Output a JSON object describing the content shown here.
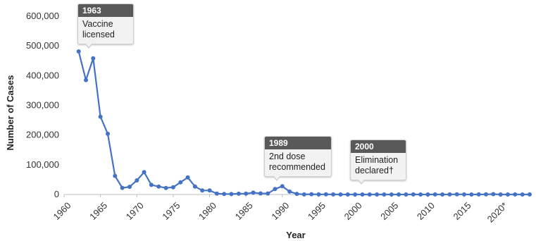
{
  "chart_data": {
    "type": "line",
    "title": "",
    "xlabel": "Year",
    "ylabel": "Number of Cases",
    "xlim": [
      1960,
      2024
    ],
    "ylim": [
      0,
      600000
    ],
    "grid": false,
    "line_color": "#4472c4",
    "y_ticks": [
      {
        "value": 0,
        "label": "0"
      },
      {
        "value": 100000,
        "label": "100,000"
      },
      {
        "value": 200000,
        "label": "200,000"
      },
      {
        "value": 300000,
        "label": "300,000"
      },
      {
        "value": 400000,
        "label": "400,000"
      },
      {
        "value": 500000,
        "label": "500,000"
      },
      {
        "value": 600000,
        "label": "600,000"
      }
    ],
    "x_ticks": [
      {
        "value": 1960,
        "label": "1960"
      },
      {
        "value": 1965,
        "label": "1965"
      },
      {
        "value": 1970,
        "label": "1970"
      },
      {
        "value": 1975,
        "label": "1975"
      },
      {
        "value": 1980,
        "label": "1980"
      },
      {
        "value": 1985,
        "label": "1985"
      },
      {
        "value": 1990,
        "label": "1990"
      },
      {
        "value": 1995,
        "label": "1995"
      },
      {
        "value": 2000,
        "label": "2000"
      },
      {
        "value": 2005,
        "label": "2005"
      },
      {
        "value": 2010,
        "label": "2010"
      },
      {
        "value": 2015,
        "label": "2015"
      },
      {
        "value": 2020,
        "label": "2020*"
      }
    ],
    "x": [
      1962,
      1963,
      1964,
      1965,
      1966,
      1967,
      1968,
      1969,
      1970,
      1971,
      1972,
      1973,
      1974,
      1975,
      1976,
      1977,
      1978,
      1979,
      1980,
      1981,
      1982,
      1983,
      1984,
      1985,
      1986,
      1987,
      1988,
      1989,
      1990,
      1991,
      1992,
      1993,
      1994,
      1995,
      1996,
      1997,
      1998,
      1999,
      2000,
      2001,
      2002,
      2003,
      2004,
      2005,
      2006,
      2007,
      2008,
      2009,
      2010,
      2011,
      2012,
      2013,
      2014,
      2015,
      2016,
      2017,
      2018,
      2019,
      2020,
      2021,
      2022,
      2023,
      2024
    ],
    "series": [
      {
        "values": [
          481530,
          385156,
          458083,
          261904,
          204136,
          62705,
          22231,
          25826,
          47351,
          75290,
          32275,
          26690,
          22094,
          24374,
          41126,
          57345,
          26871,
          13597,
          13506,
          3124,
          1714,
          1497,
          2587,
          2822,
          6282,
          3655,
          3396,
          18193,
          27786,
          9643,
          2237,
          312,
          963,
          309,
          508,
          138,
          100,
          100,
          86,
          116,
          44,
          56,
          37,
          66,
          55,
          43,
          140,
          71,
          63,
          220,
          55,
          187,
          667,
          188,
          86,
          120,
          375,
          1274,
          13,
          49,
          121,
          59,
          285
        ]
      }
    ],
    "annotations": [
      {
        "year_label": "1963",
        "text": [
          "Vaccine",
          "licensed"
        ]
      },
      {
        "year_label": "1989",
        "text": [
          "2nd dose",
          "recommended"
        ]
      },
      {
        "year_label": "2000",
        "text": [
          "Elimination",
          "declared†"
        ]
      }
    ]
  }
}
